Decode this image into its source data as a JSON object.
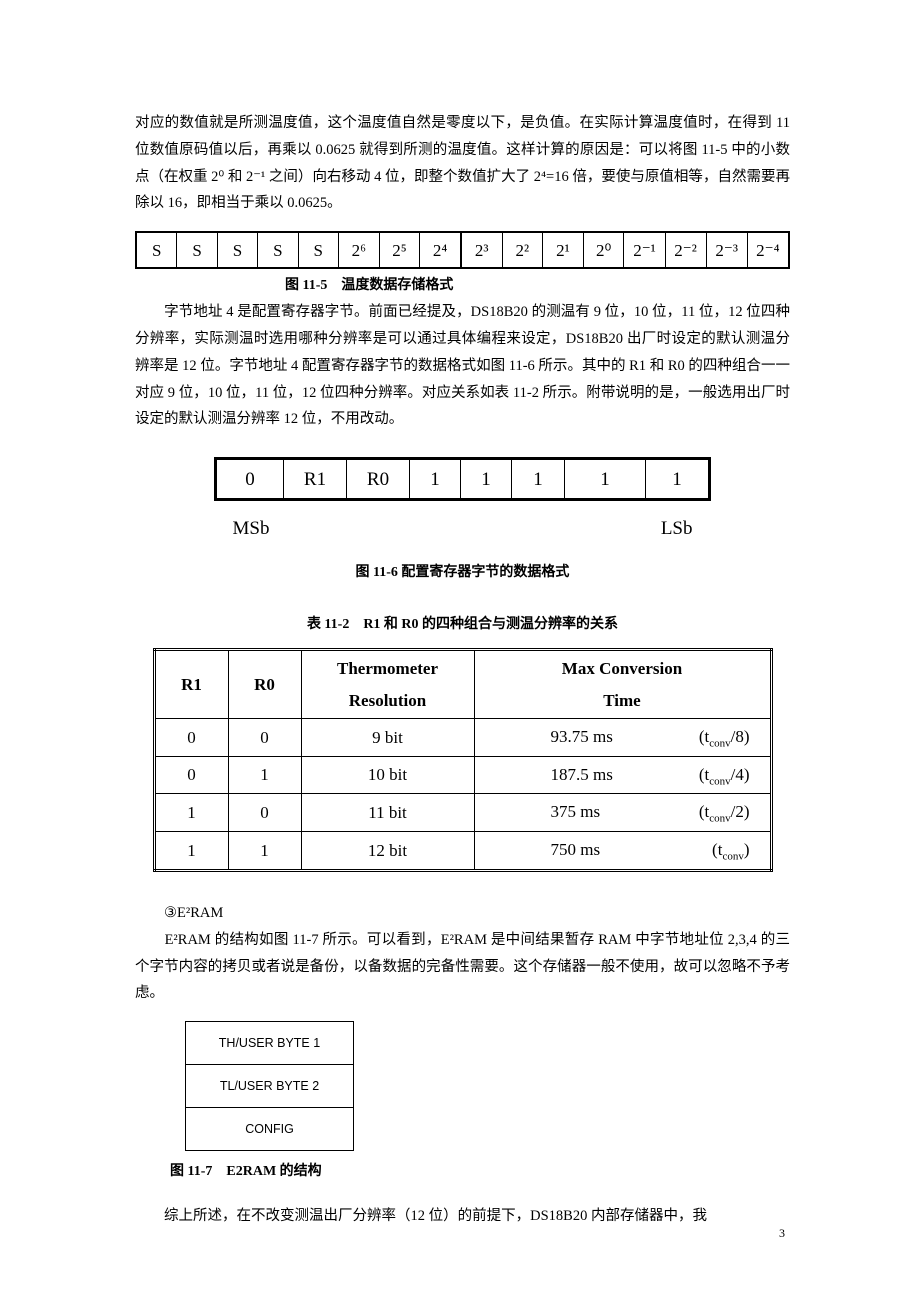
{
  "paragraph1": "对应的数值就是所测温度值，这个温度值自然是零度以下，是负值。在实际计算温度值时，在得到 11 位数值原码值以后，再乘以 0.0625 就得到所测的温度值。这样计算的原因是：可以将图 11-5 中的小数点（在权重 2⁰ 和 2⁻¹ 之间）向右移动 4 位，即整个数值扩大了 2⁴=16 倍，要使与原值相等，自然需要再除以 16，即相当于乘以 0.0625。",
  "fig115": {
    "cells_left": [
      "S",
      "S",
      "S",
      "S",
      "S",
      "2⁶",
      "2⁵",
      "2⁴"
    ],
    "cells_right": [
      "2³",
      "2²",
      "2¹",
      "2⁰",
      "2⁻¹",
      "2⁻²",
      "2⁻³",
      "2⁻⁴"
    ],
    "caption": "图 11-5　温度数据存储格式"
  },
  "paragraph2": "　　字节地址 4 是配置寄存器字节。前面已经提及，DS18B20 的测温有 9 位，10 位，11 位，12 位四种分辨率，实际测温时选用哪种分辨率是可以通过具体编程来设定，DS18B20 出厂时设定的默认测温分辨率是 12 位。字节地址 4 配置寄存器字节的数据格式如图 11-6 所示。其中的 R1 和 R0 的四种组合一一对应 9 位，10 位，11 位，12 位四种分辨率。对应关系如表 11-2 所示。附带说明的是，一般选用出厂时设定的默认测温分辨率 12 位，不用改动。",
  "fig116": {
    "cells": [
      "0",
      "R1",
      "R0",
      "1",
      "1",
      "1",
      "1",
      "1"
    ],
    "widths": [
      64,
      60,
      60,
      48,
      48,
      50,
      78,
      60
    ],
    "msb": "MSb",
    "lsb": "LSb",
    "caption": "图 11-6  配置寄存器字节的数据格式"
  },
  "table112": {
    "title": "表 11-2　R1 和 R0 的四种组合与测温分辨率的关系",
    "headers": [
      "R1",
      "R0",
      "Thermometer Resolution",
      "Max Conversion Time"
    ],
    "rows": [
      {
        "r1": "0",
        "r0": "0",
        "res": "9 bit",
        "time": "93.75 ms",
        "tconv": "(t_conv/8)"
      },
      {
        "r1": "0",
        "r0": "1",
        "res": "10 bit",
        "time": "187.5 ms",
        "tconv": "(t_conv/4)"
      },
      {
        "r1": "1",
        "r0": "0",
        "res": "11 bit",
        "time": "375 ms",
        "tconv": "(t_conv/2)"
      },
      {
        "r1": "1",
        "r0": "1",
        "res": "12 bit",
        "time": "750 ms",
        "tconv": "(t_conv)"
      }
    ]
  },
  "section_e2ram": {
    "heading": "③E²RAM",
    "body": "　　E²RAM 的结构如图 11-7 所示。可以看到，E²RAM 是中间结果暂存 RAM 中字节地址位 2,3,4 的三个字节内容的拷贝或者说是备份，以备数据的完备性需要。这个存储器一般不使用，故可以忽略不予考虑。"
  },
  "fig117": {
    "rows": [
      "TH/USER BYTE 1",
      "TL/USER BYTE 2",
      "CONFIG"
    ],
    "caption": "图 11-7　E2RAM 的结构"
  },
  "last_line": "　　综上所述，在不改变测温出厂分辨率（12 位）的前提下，DS18B20 内部存储器中，我",
  "page_number": "3"
}
